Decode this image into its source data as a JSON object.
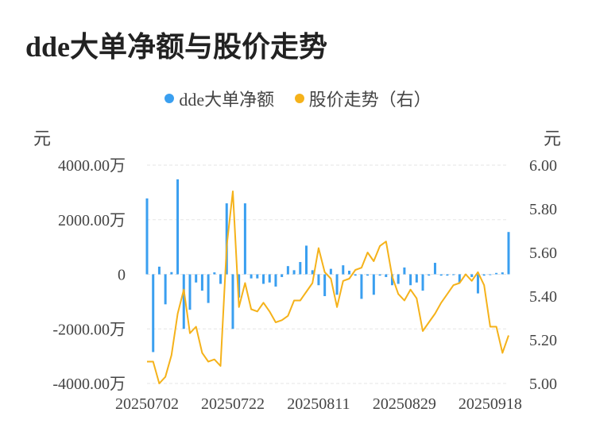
{
  "title": "dde大单净额与股价走势",
  "legend": [
    {
      "label": "dde大单净额",
      "color": "#3a9ff0"
    },
    {
      "label": "股价走势（右）",
      "color": "#f5b21a"
    }
  ],
  "left_unit": "元",
  "right_unit": "元",
  "chart_data": {
    "type": "bar+line",
    "x": [
      "20250702",
      "20250703",
      "20250704",
      "20250707",
      "20250708",
      "20250709",
      "20250710",
      "20250711",
      "20250714",
      "20250715",
      "20250716",
      "20250717",
      "20250718",
      "20250721",
      "20250722",
      "20250723",
      "20250724",
      "20250725",
      "20250728",
      "20250729",
      "20250730",
      "20250731",
      "20250801",
      "20250804",
      "20250805",
      "20250806",
      "20250807",
      "20250808",
      "20250811",
      "20250812",
      "20250813",
      "20250814",
      "20250815",
      "20250818",
      "20250819",
      "20250820",
      "20250821",
      "20250822",
      "20250825",
      "20250826",
      "20250827",
      "20250828",
      "20250829",
      "20250901",
      "20250902",
      "20250903",
      "20250904",
      "20250905",
      "20250908",
      "20250909",
      "20250910",
      "20250911",
      "20250912",
      "20250915",
      "20250916",
      "20250917",
      "20250918",
      "20250919",
      "20250922",
      "20250923"
    ],
    "x_tick_labels": [
      "20250702",
      "20250722",
      "20250811",
      "20250829",
      "20250918"
    ],
    "series": [
      {
        "name": "dde大单净额",
        "axis": "left",
        "type": "bar",
        "color": "#3a9ff0",
        "values": [
          2780,
          -2850,
          280,
          -1100,
          80,
          3480,
          -2000,
          -1300,
          -300,
          -600,
          -1050,
          70,
          -350,
          2600,
          -2000,
          -850,
          2600,
          -150,
          -150,
          -350,
          -300,
          -450,
          -100,
          300,
          150,
          450,
          1050,
          150,
          -400,
          -800,
          200,
          -750,
          330,
          130,
          -50,
          -900,
          -50,
          -750,
          -50,
          -100,
          -400,
          -350,
          250,
          -400,
          -300,
          -600,
          -50,
          420,
          -50,
          -50,
          -30,
          -300,
          -50,
          -100,
          -700,
          -50,
          -30,
          50,
          70,
          1550
        ]
      },
      {
        "name": "股价走势（右）",
        "axis": "right",
        "type": "line",
        "color": "#f5b21a",
        "values": [
          5.1,
          5.1,
          5.0,
          5.03,
          5.13,
          5.32,
          5.43,
          5.23,
          5.26,
          5.14,
          5.1,
          5.11,
          5.08,
          5.63,
          5.88,
          5.35,
          5.46,
          5.34,
          5.33,
          5.37,
          5.33,
          5.28,
          5.29,
          5.31,
          5.38,
          5.38,
          5.42,
          5.46,
          5.62,
          5.51,
          5.48,
          5.35,
          5.47,
          5.48,
          5.52,
          5.53,
          5.6,
          5.56,
          5.63,
          5.65,
          5.49,
          5.41,
          5.38,
          5.43,
          5.39,
          5.24,
          5.28,
          5.32,
          5.37,
          5.41,
          5.45,
          5.46,
          5.5,
          5.47,
          5.51,
          5.45,
          5.26,
          5.26,
          5.14,
          5.22
        ]
      }
    ],
    "y_left": {
      "min": -4000,
      "max": 4000,
      "ticks": [
        -4000,
        -2000,
        0,
        2000,
        4000
      ],
      "tick_labels": [
        "-4000.00万",
        "-2000.00万",
        "0",
        "2000.00万",
        "4000.00万"
      ]
    },
    "y_right": {
      "min": 5.0,
      "max": 6.0,
      "ticks": [
        5.0,
        5.2,
        5.4,
        5.6,
        5.8,
        6.0
      ],
      "tick_labels": [
        "5.00",
        "5.20",
        "5.40",
        "5.60",
        "5.80",
        "6.00"
      ]
    },
    "grid": true,
    "legend_position": "top"
  }
}
